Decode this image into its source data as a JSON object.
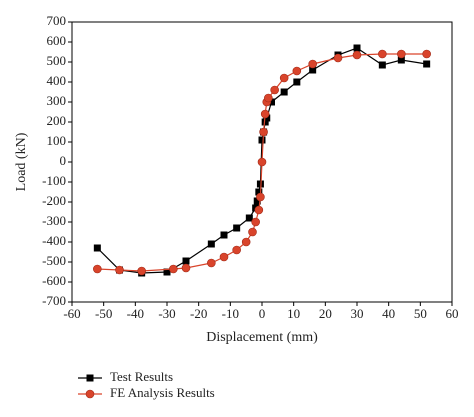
{
  "chart_data": {
    "type": "line",
    "x_label": "Displacement (mm)",
    "y_label": "Load (kN)",
    "xlim": [
      -60,
      60
    ],
    "xticks": [
      -60,
      -50,
      -40,
      -30,
      -20,
      -10,
      0,
      10,
      20,
      30,
      40,
      50,
      60
    ],
    "ylim": [
      -700,
      700
    ],
    "yticks": [
      -700,
      -600,
      -500,
      -400,
      -300,
      -200,
      -100,
      0,
      100,
      200,
      300,
      400,
      500,
      600,
      700
    ],
    "series": [
      {
        "name": "Test Results",
        "color": "#000000",
        "marker": "square",
        "x": [
          -52,
          -45,
          -38,
          -30,
          -24,
          -16,
          -12,
          -8,
          -4,
          -2,
          -1.5,
          -1,
          -0.5,
          0,
          0.5,
          1,
          1.5,
          3,
          7,
          11,
          16,
          24,
          30,
          38,
          44,
          52
        ],
        "values": [
          -430,
          -540,
          -555,
          -550,
          -495,
          -410,
          -365,
          -330,
          -280,
          -230,
          -195,
          -150,
          -110,
          110,
          150,
          200,
          220,
          300,
          350,
          400,
          460,
          535,
          570,
          485,
          510,
          490
        ]
      },
      {
        "name": "FE Analysis Results",
        "color": "#d9442b",
        "marker": "circle",
        "x": [
          -52,
          -45,
          -38,
          -28,
          -24,
          -16,
          -12,
          -8,
          -5,
          -3,
          -2,
          -1,
          -0.5,
          0,
          0.5,
          1,
          1.5,
          2,
          4,
          7,
          11,
          16,
          24,
          30,
          38,
          44,
          52
        ],
        "values": [
          -535,
          -540,
          -545,
          -535,
          -530,
          -505,
          -475,
          -440,
          -400,
          -350,
          -300,
          -240,
          -175,
          0,
          150,
          240,
          300,
          320,
          360,
          420,
          455,
          490,
          520,
          535,
          540,
          540,
          540
        ]
      }
    ]
  }
}
